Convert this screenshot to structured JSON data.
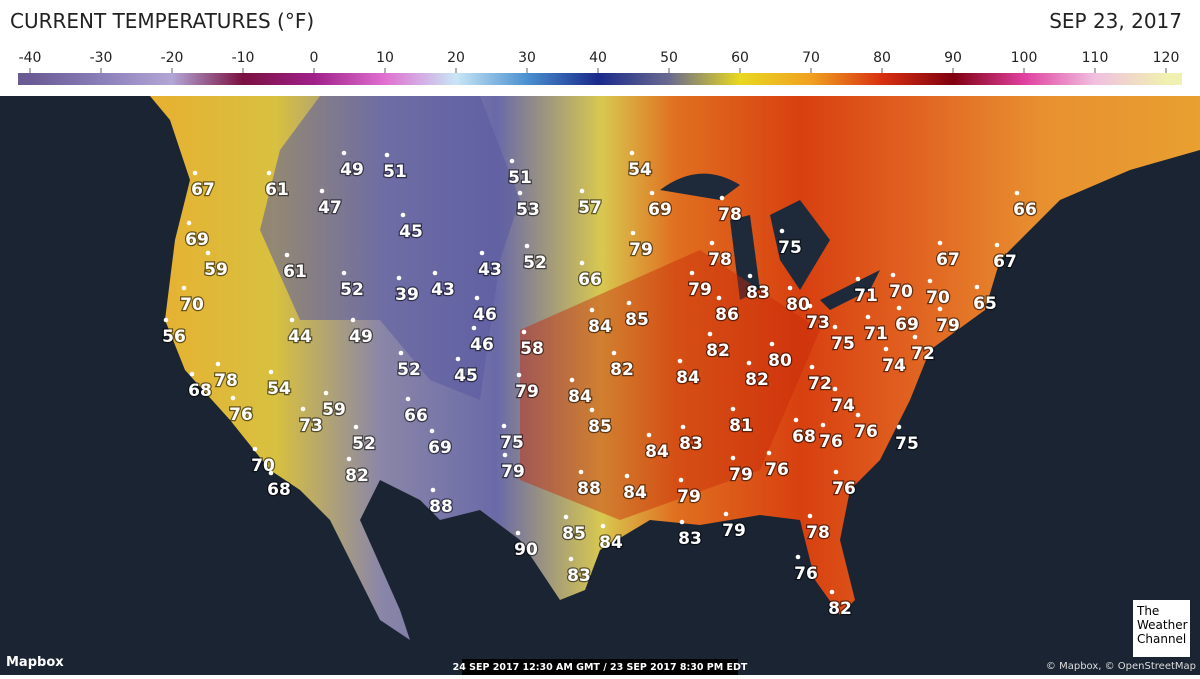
{
  "header": {
    "title": "CURRENT TEMPERATURES (°F)",
    "date": "SEP 23, 2017"
  },
  "legend": {
    "ticks": [
      -40,
      -30,
      -20,
      -10,
      0,
      10,
      20,
      30,
      40,
      50,
      60,
      70,
      80,
      90,
      100,
      110,
      120
    ]
  },
  "readings": [
    67,
    61,
    49,
    51,
    47,
    51,
    53,
    57,
    54,
    69,
    78,
    75,
    66,
    69,
    59,
    61,
    45,
    52,
    39,
    43,
    43,
    52,
    66,
    79,
    78,
    67,
    67,
    70,
    56,
    44,
    49,
    46,
    84,
    85,
    79,
    83,
    86,
    80,
    73,
    71,
    70,
    70,
    65,
    69,
    79,
    75,
    71,
    72,
    74,
    58,
    46,
    52,
    45,
    82,
    84,
    82,
    80,
    82,
    72,
    68,
    78,
    54,
    76,
    59,
    73,
    66,
    79,
    84,
    85,
    74,
    81,
    69,
    52,
    75,
    83,
    84,
    68,
    76,
    76,
    75,
    70,
    68,
    82,
    79,
    88,
    84,
    79,
    76,
    76,
    79,
    88,
    85,
    84,
    83,
    79,
    78,
    90,
    83,
    76,
    82
  ],
  "footer": {
    "credit": "Mapbox",
    "timestamp": "24 SEP 2017 12:30 AM GMT / 23 SEP 2017 8:30 PM EDT",
    "attribution": "© Mapbox, © OpenStreetMap",
    "logo": "The Weather Channel"
  }
}
